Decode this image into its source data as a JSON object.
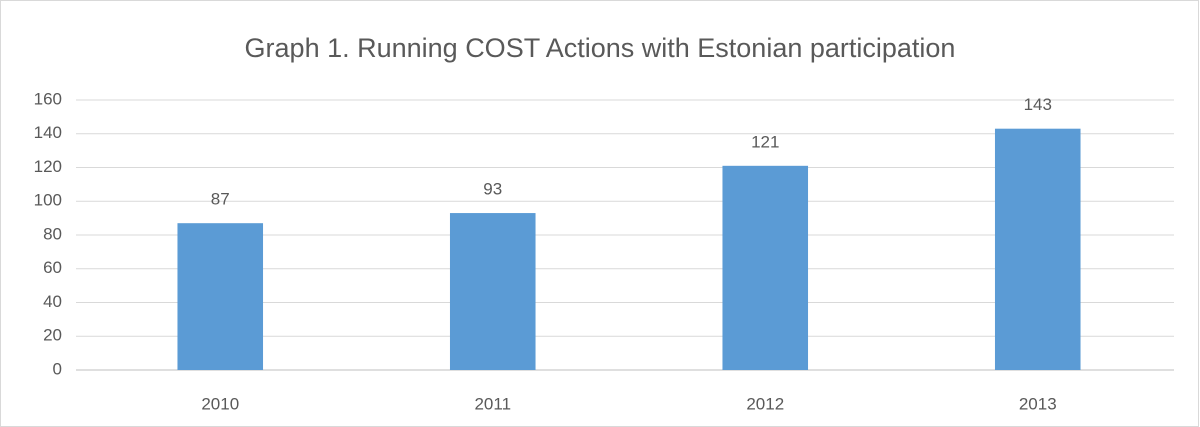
{
  "chart_data": {
    "type": "bar",
    "title": "Graph 1. Running COST Actions with Estonian participation",
    "categories": [
      "2010",
      "2011",
      "2012",
      "2013"
    ],
    "values": [
      87,
      93,
      121,
      143
    ],
    "color": "#5b9bd5",
    "ylim": [
      0,
      160
    ],
    "yticks": [
      0,
      20,
      40,
      60,
      80,
      100,
      120,
      140,
      160
    ],
    "grid": true
  }
}
